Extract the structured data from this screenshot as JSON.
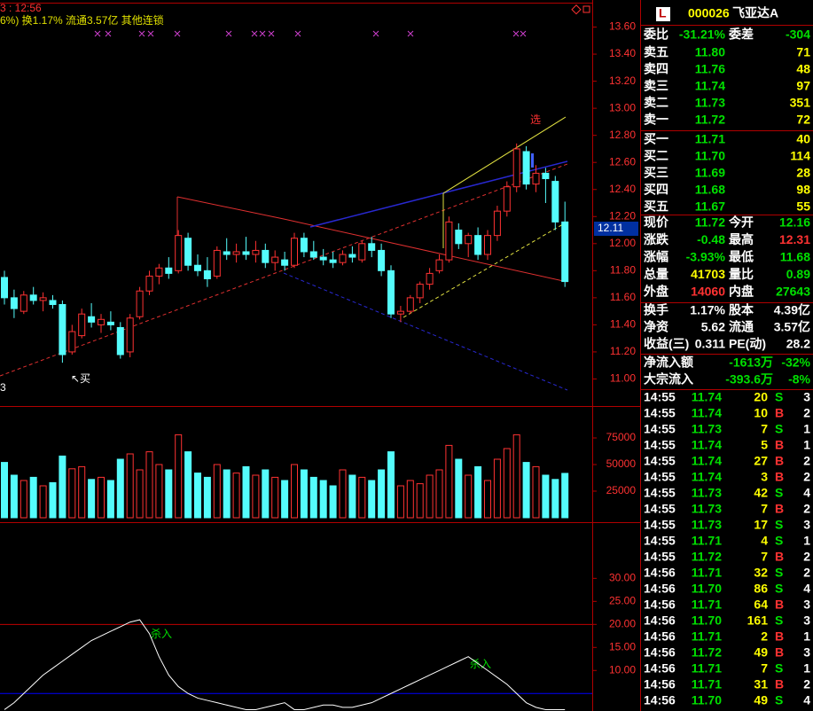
{
  "chart": {
    "time": "3 : 12:56",
    "header": "6%) 换1.17% 流通3.57亿 其他连锁",
    "signals": [
      "选",
      "↖买",
      "杀入",
      "杀入"
    ],
    "corner_label": "3",
    "price": {
      "ylim": [
        10.8,
        13.8
      ],
      "yticks": [
        {
          "value": 11.0,
          "label": "11.00"
        },
        {
          "value": 11.2,
          "label": "11.20"
        },
        {
          "value": 11.4,
          "label": "11.40"
        },
        {
          "value": 11.6,
          "label": "11.60"
        },
        {
          "value": 11.8,
          "label": "11.80"
        },
        {
          "value": 12.0,
          "label": "12.00"
        },
        {
          "value": 12.2,
          "label": "12.20"
        },
        {
          "value": 12.4,
          "label": "12.40"
        },
        {
          "value": 12.6,
          "label": "12.60"
        },
        {
          "value": 12.8,
          "label": "12.80"
        },
        {
          "value": 13.0,
          "label": "13.00"
        },
        {
          "value": 13.2,
          "label": "13.20"
        },
        {
          "value": 13.4,
          "label": "13.40"
        },
        {
          "value": 13.6,
          "label": "13.60"
        }
      ],
      "cursor": {
        "value": 12.11,
        "label": "12.11"
      },
      "up_color": "#ff3232",
      "down_color": "#54fcfc",
      "candles": [
        [
          11.75,
          11.8,
          11.55,
          11.6
        ],
        [
          11.6,
          11.66,
          11.45,
          11.52
        ],
        [
          11.5,
          11.65,
          11.48,
          11.62
        ],
        [
          11.62,
          11.68,
          11.55,
          11.58
        ],
        [
          11.58,
          11.64,
          11.5,
          11.6
        ],
        [
          11.58,
          11.62,
          11.52,
          11.55
        ],
        [
          11.55,
          11.58,
          11.12,
          11.18
        ],
        [
          11.2,
          11.4,
          11.18,
          11.35
        ],
        [
          11.32,
          11.52,
          11.3,
          11.48
        ],
        [
          11.46,
          11.56,
          11.38,
          11.42
        ],
        [
          11.4,
          11.48,
          11.34,
          11.44
        ],
        [
          11.42,
          11.5,
          11.36,
          11.4
        ],
        [
          11.38,
          11.42,
          11.15,
          11.18
        ],
        [
          11.2,
          11.48,
          11.16,
          11.45
        ],
        [
          11.46,
          11.68,
          11.44,
          11.65
        ],
        [
          11.65,
          11.8,
          11.62,
          11.76
        ],
        [
          11.76,
          11.85,
          11.7,
          11.82
        ],
        [
          11.82,
          11.9,
          11.74,
          11.78
        ],
        [
          11.8,
          12.1,
          11.78,
          12.06
        ],
        [
          12.04,
          12.08,
          11.8,
          11.84
        ],
        [
          11.84,
          11.92,
          11.76,
          11.8
        ],
        [
          11.8,
          11.9,
          11.68,
          11.74
        ],
        [
          11.76,
          11.98,
          11.74,
          11.95
        ],
        [
          11.94,
          12.04,
          11.88,
          11.92
        ],
        [
          11.92,
          12.0,
          11.86,
          11.94
        ],
        [
          11.94,
          12.05,
          11.88,
          11.92
        ],
        [
          11.92,
          12.02,
          11.86,
          11.95
        ],
        [
          11.95,
          12.0,
          11.82,
          11.86
        ],
        [
          11.86,
          11.95,
          11.8,
          11.9
        ],
        [
          11.88,
          11.94,
          11.8,
          11.84
        ],
        [
          11.84,
          12.08,
          11.82,
          12.04
        ],
        [
          12.04,
          12.08,
          11.9,
          11.94
        ],
        [
          11.94,
          12.02,
          11.88,
          11.9
        ],
        [
          11.9,
          11.96,
          11.84,
          11.88
        ],
        [
          11.88,
          11.94,
          11.82,
          11.86
        ],
        [
          11.86,
          11.95,
          11.84,
          11.92
        ],
        [
          11.92,
          11.98,
          11.86,
          11.9
        ],
        [
          11.88,
          12.02,
          11.86,
          12.0
        ],
        [
          12.0,
          12.05,
          11.9,
          11.95
        ],
        [
          11.95,
          12.0,
          11.76,
          11.8
        ],
        [
          11.8,
          11.84,
          11.45,
          11.48
        ],
        [
          11.48,
          11.54,
          11.42,
          11.5
        ],
        [
          11.5,
          11.62,
          11.48,
          11.6
        ],
        [
          11.6,
          11.72,
          11.56,
          11.7
        ],
        [
          11.7,
          11.82,
          11.66,
          11.78
        ],
        [
          11.8,
          11.92,
          11.78,
          11.88
        ],
        [
          11.88,
          12.2,
          11.86,
          12.16
        ],
        [
          12.1,
          12.15,
          11.96,
          12.0
        ],
        [
          12.0,
          12.08,
          11.9,
          12.06
        ],
        [
          12.06,
          12.12,
          11.88,
          11.92
        ],
        [
          11.92,
          12.1,
          11.88,
          12.06
        ],
        [
          12.06,
          12.28,
          12.02,
          12.24
        ],
        [
          12.24,
          12.46,
          12.2,
          12.42
        ],
        [
          12.42,
          12.74,
          12.38,
          12.7
        ],
        [
          12.68,
          12.72,
          12.4,
          12.44
        ],
        [
          12.44,
          12.58,
          12.38,
          12.52
        ],
        [
          12.52,
          12.56,
          12.3,
          12.48
        ],
        [
          12.46,
          12.5,
          12.1,
          12.16
        ],
        [
          12.16,
          12.31,
          11.68,
          11.72
        ]
      ]
    },
    "volume": {
      "ylim": [
        0,
        105000
      ],
      "yticks": [
        25000,
        50000,
        75000
      ],
      "values": [
        52000,
        40000,
        35000,
        38000,
        30000,
        33000,
        58000,
        46000,
        48000,
        36000,
        38000,
        35000,
        55000,
        60000,
        45000,
        62000,
        50000,
        45000,
        78000,
        62000,
        42000,
        38000,
        50000,
        45000,
        42000,
        48000,
        40000,
        45000,
        38000,
        35000,
        50000,
        45000,
        38000,
        35000,
        30000,
        45000,
        40000,
        38000,
        35000,
        45000,
        62000,
        30000,
        35000,
        32000,
        40000,
        45000,
        68000,
        55000,
        40000,
        48000,
        35000,
        55000,
        65000,
        78000,
        52000,
        48000,
        40000,
        36000,
        41703
      ]
    },
    "indicator": {
      "ylim": [
        1.2,
        42
      ],
      "yticks": [
        {
          "value": 10,
          "label": "10.00"
        },
        {
          "value": 15,
          "label": "15.00"
        },
        {
          "value": 20,
          "label": "20.00"
        },
        {
          "value": 25,
          "label": "25.00"
        },
        {
          "value": 30,
          "label": "30.00"
        }
      ],
      "levels": [
        {
          "value": 20,
          "color": "#c00000"
        },
        {
          "value": 5,
          "color": "#0000ff"
        }
      ],
      "color": "#ffffff",
      "values": [
        1.5,
        3,
        5,
        7,
        9,
        10.5,
        12,
        13.5,
        15,
        16.5,
        17.5,
        18.5,
        19.5,
        20.5,
        21,
        18,
        13,
        9,
        6.5,
        5,
        4,
        3.5,
        3,
        2.5,
        2,
        1.5,
        1.5,
        2,
        2.5,
        3,
        1.5,
        1.5,
        2,
        2.5,
        2.5,
        2,
        2,
        2.5,
        3,
        4,
        5,
        6,
        7,
        8,
        9,
        10,
        11,
        12,
        13,
        11.5,
        10,
        8.5,
        7,
        5,
        3,
        2,
        1.5,
        1.5,
        1.5
      ]
    }
  },
  "panel": {
    "badge": "L",
    "code": "000026",
    "name": "飞亚达A",
    "ratio": {
      "l1": "委比",
      "v1": "-31.21%",
      "c1": "#00e000",
      "l2": "委差",
      "v2": "-304",
      "c2": "#00e000"
    },
    "asks": [
      {
        "label": "卖五",
        "price": "11.80",
        "volume": "71"
      },
      {
        "label": "卖四",
        "price": "11.76",
        "volume": "48"
      },
      {
        "label": "卖三",
        "price": "11.74",
        "volume": "97"
      },
      {
        "label": "卖二",
        "price": "11.73",
        "volume": "351"
      },
      {
        "label": "卖一",
        "price": "11.72",
        "volume": "72"
      }
    ],
    "bids": [
      {
        "label": "买一",
        "price": "11.71",
        "volume": "40"
      },
      {
        "label": "买二",
        "price": "11.70",
        "volume": "114"
      },
      {
        "label": "买三",
        "price": "11.69",
        "volume": "28"
      },
      {
        "label": "买四",
        "price": "11.68",
        "volume": "98"
      },
      {
        "label": "买五",
        "price": "11.67",
        "volume": "55"
      }
    ],
    "stats": [
      {
        "l1": "现价",
        "v1": "11.72",
        "c1": "#00e000",
        "l2": "今开",
        "v2": "12.16",
        "c2": "#00e000"
      },
      {
        "l1": "涨跌",
        "v1": "-0.48",
        "c1": "#00e000",
        "l2": "最高",
        "v2": "12.31",
        "c2": "#ff3232"
      },
      {
        "l1": "涨幅",
        "v1": "-3.93%",
        "c1": "#00e000",
        "l2": "最低",
        "v2": "11.68",
        "c2": "#00e000"
      },
      {
        "l1": "总量",
        "v1": "41703",
        "c1": "#ffff00",
        "l2": "量比",
        "v2": "0.89",
        "c2": "#00e000"
      },
      {
        "l1": "外盘",
        "v1": "14060",
        "c1": "#ff3232",
        "l2": "内盘",
        "v2": "27643",
        "c2": "#00e000"
      }
    ],
    "info": [
      {
        "l1": "换手",
        "v1": "1.17%",
        "c1": "#ffffff",
        "l2": "股本",
        "v2": "4.39亿",
        "c2": "#ffffff"
      },
      {
        "l1": "净资",
        "v1": "5.62",
        "c1": "#ffffff",
        "l2": "流通",
        "v2": "3.57亿",
        "c2": "#ffffff"
      },
      {
        "l1": "收益(三)",
        "v1": "0.311",
        "c1": "#ffffff",
        "l2": "PE(动)",
        "v2": "28.2",
        "c2": "#ffffff"
      }
    ],
    "flows": [
      {
        "label": "净流入额",
        "value": "-1613万",
        "pct": "-32%"
      },
      {
        "label": "大宗流入",
        "value": "-393.6万",
        "pct": "-8%"
      }
    ],
    "trades": [
      [
        "14:55",
        "11.74",
        "20",
        "S",
        "3"
      ],
      [
        "14:55",
        "11.74",
        "10",
        "B",
        "2"
      ],
      [
        "14:55",
        "11.73",
        "7",
        "S",
        "1"
      ],
      [
        "14:55",
        "11.74",
        "5",
        "B",
        "1"
      ],
      [
        "14:55",
        "11.74",
        "27",
        "B",
        "2"
      ],
      [
        "14:55",
        "11.74",
        "3",
        "B",
        "2"
      ],
      [
        "14:55",
        "11.73",
        "42",
        "S",
        "4"
      ],
      [
        "14:55",
        "11.73",
        "7",
        "B",
        "2"
      ],
      [
        "14:55",
        "11.73",
        "17",
        "S",
        "3"
      ],
      [
        "14:55",
        "11.71",
        "4",
        "S",
        "1"
      ],
      [
        "14:55",
        "11.72",
        "7",
        "B",
        "2"
      ],
      [
        "14:56",
        "11.71",
        "32",
        "S",
        "2"
      ],
      [
        "14:56",
        "11.70",
        "86",
        "S",
        "4"
      ],
      [
        "14:56",
        "11.71",
        "64",
        "B",
        "3"
      ],
      [
        "14:56",
        "11.70",
        "161",
        "S",
        "3"
      ],
      [
        "14:56",
        "11.71",
        "2",
        "B",
        "1"
      ],
      [
        "14:56",
        "11.72",
        "49",
        "B",
        "3"
      ],
      [
        "14:56",
        "11.71",
        "7",
        "S",
        "1"
      ],
      [
        "14:56",
        "11.71",
        "31",
        "B",
        "2"
      ],
      [
        "14:56",
        "11.70",
        "49",
        "S",
        "4"
      ]
    ]
  }
}
